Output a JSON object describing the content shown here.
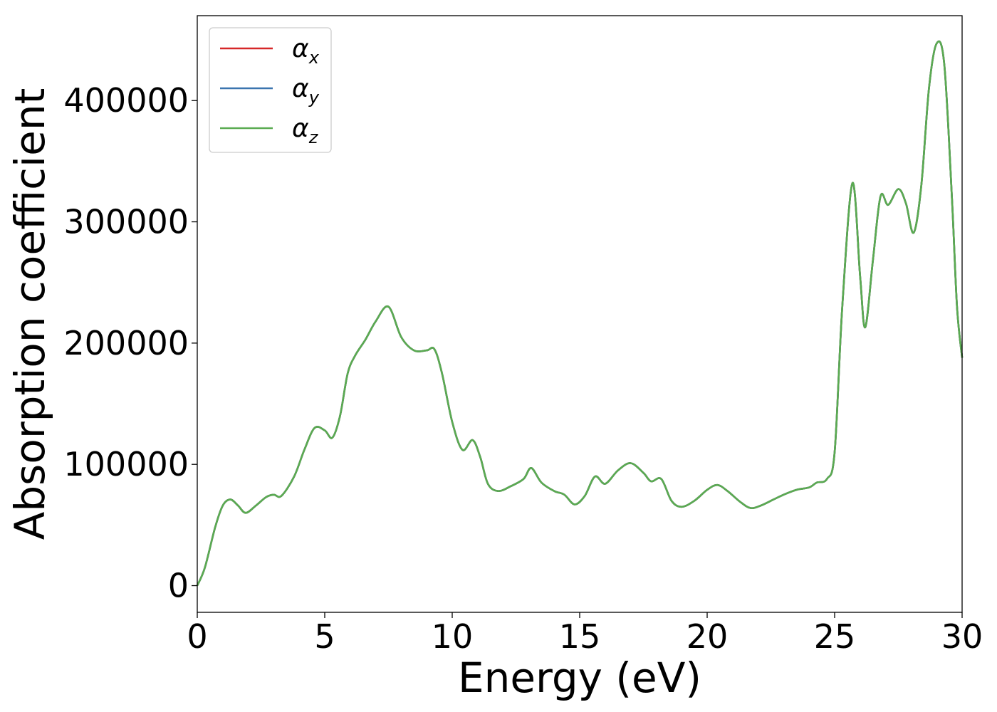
{
  "chart_data": {
    "type": "line",
    "title": "",
    "xlabel": "Energy (eV)",
    "ylabel": "Absorption coefficient",
    "xlim": [
      0,
      30
    ],
    "ylim": [
      -22000,
      470000
    ],
    "xticks": [
      0,
      5,
      10,
      15,
      20,
      25,
      30
    ],
    "yticks": [
      0,
      100000,
      200000,
      300000,
      400000
    ],
    "grid": false,
    "legend_position": "top-left",
    "series": [
      {
        "name": "α",
        "subscript": "x",
        "color": "#d62728",
        "x": [
          0.0,
          0.3,
          0.7,
          1.0,
          1.3,
          1.6,
          1.9,
          2.3,
          2.7,
          3.0,
          3.3,
          3.8,
          4.2,
          4.6,
          5.0,
          5.3,
          5.6,
          5.9,
          6.2,
          6.6,
          7.0,
          7.5,
          8.0,
          8.5,
          9.0,
          9.3,
          9.6,
          10.0,
          10.4,
          10.8,
          11.1,
          11.4,
          11.8,
          12.3,
          12.8,
          13.1,
          13.5,
          14.0,
          14.4,
          14.8,
          15.2,
          15.6,
          16.0,
          16.5,
          17.0,
          17.5,
          17.8,
          18.2,
          18.6,
          19.0,
          19.5,
          20.0,
          20.4,
          20.8,
          21.3,
          21.7,
          22.1,
          22.6,
          23.0,
          23.5,
          24.0,
          24.3,
          24.7,
          25.0,
          25.3,
          25.7,
          26.0,
          26.2,
          26.5,
          26.8,
          27.1,
          27.5,
          27.8,
          28.1,
          28.4,
          28.7,
          29.0,
          29.3,
          29.6,
          29.8,
          30.0
        ],
        "y": [
          0,
          15000,
          48000,
          66000,
          71000,
          66000,
          60000,
          66000,
          73000,
          75000,
          74000,
          90000,
          112000,
          130000,
          128000,
          122000,
          140000,
          175000,
          190000,
          203000,
          218000,
          230000,
          205000,
          194000,
          194000,
          195000,
          175000,
          135000,
          112000,
          120000,
          106000,
          84000,
          78000,
          82000,
          88000,
          97000,
          85000,
          78000,
          75000,
          67000,
          74000,
          90000,
          84000,
          95000,
          101000,
          93000,
          86000,
          88000,
          70000,
          65000,
          70000,
          79000,
          83000,
          78000,
          69000,
          64000,
          66000,
          71000,
          75000,
          79000,
          81000,
          85000,
          88000,
          110000,
          230000,
          332000,
          255000,
          213000,
          268000,
          321000,
          314000,
          327000,
          315000,
          291000,
          330000,
          410000,
          447000,
          430000,
          320000,
          230000,
          188000
        ]
      },
      {
        "name": "α",
        "subscript": "y",
        "color": "#3b75af",
        "x": [
          0.0,
          0.3,
          0.7,
          1.0,
          1.3,
          1.6,
          1.9,
          2.3,
          2.7,
          3.0,
          3.3,
          3.8,
          4.2,
          4.6,
          5.0,
          5.3,
          5.6,
          5.9,
          6.2,
          6.6,
          7.0,
          7.5,
          8.0,
          8.5,
          9.0,
          9.3,
          9.6,
          10.0,
          10.4,
          10.8,
          11.1,
          11.4,
          11.8,
          12.3,
          12.8,
          13.1,
          13.5,
          14.0,
          14.4,
          14.8,
          15.2,
          15.6,
          16.0,
          16.5,
          17.0,
          17.5,
          17.8,
          18.2,
          18.6,
          19.0,
          19.5,
          20.0,
          20.4,
          20.8,
          21.3,
          21.7,
          22.1,
          22.6,
          23.0,
          23.5,
          24.0,
          24.3,
          24.7,
          25.0,
          25.3,
          25.7,
          26.0,
          26.2,
          26.5,
          26.8,
          27.1,
          27.5,
          27.8,
          28.1,
          28.4,
          28.7,
          29.0,
          29.3,
          29.6,
          29.8,
          30.0
        ],
        "y": [
          0,
          15000,
          48000,
          66000,
          71000,
          66000,
          60000,
          66000,
          73000,
          75000,
          74000,
          90000,
          112000,
          130000,
          128000,
          122000,
          140000,
          175000,
          190000,
          203000,
          218000,
          230000,
          205000,
          194000,
          194000,
          195000,
          175000,
          135000,
          112000,
          120000,
          106000,
          84000,
          78000,
          82000,
          88000,
          97000,
          85000,
          78000,
          75000,
          67000,
          74000,
          90000,
          84000,
          95000,
          101000,
          93000,
          86000,
          88000,
          70000,
          65000,
          70000,
          79000,
          83000,
          78000,
          69000,
          64000,
          66000,
          71000,
          75000,
          79000,
          81000,
          85000,
          88000,
          110000,
          230000,
          332000,
          255000,
          213000,
          268000,
          321000,
          314000,
          327000,
          315000,
          291000,
          330000,
          410000,
          447000,
          430000,
          320000,
          230000,
          188000
        ]
      },
      {
        "name": "α",
        "subscript": "z",
        "color": "#5aab51",
        "x": [
          0.0,
          0.3,
          0.7,
          1.0,
          1.3,
          1.6,
          1.9,
          2.3,
          2.7,
          3.0,
          3.3,
          3.8,
          4.2,
          4.6,
          5.0,
          5.3,
          5.6,
          5.9,
          6.2,
          6.6,
          7.0,
          7.5,
          8.0,
          8.5,
          9.0,
          9.3,
          9.6,
          10.0,
          10.4,
          10.8,
          11.1,
          11.4,
          11.8,
          12.3,
          12.8,
          13.1,
          13.5,
          14.0,
          14.4,
          14.8,
          15.2,
          15.6,
          16.0,
          16.5,
          17.0,
          17.5,
          17.8,
          18.2,
          18.6,
          19.0,
          19.5,
          20.0,
          20.4,
          20.8,
          21.3,
          21.7,
          22.1,
          22.6,
          23.0,
          23.5,
          24.0,
          24.3,
          24.7,
          25.0,
          25.3,
          25.7,
          26.0,
          26.2,
          26.5,
          26.8,
          27.1,
          27.5,
          27.8,
          28.1,
          28.4,
          28.7,
          29.0,
          29.3,
          29.6,
          29.8,
          30.0
        ],
        "y": [
          0,
          15000,
          48000,
          66000,
          71000,
          66000,
          60000,
          66000,
          73000,
          75000,
          74000,
          90000,
          112000,
          130000,
          128000,
          122000,
          140000,
          175000,
          190000,
          203000,
          218000,
          230000,
          205000,
          194000,
          194000,
          195000,
          175000,
          135000,
          112000,
          120000,
          106000,
          84000,
          78000,
          82000,
          88000,
          97000,
          85000,
          78000,
          75000,
          67000,
          74000,
          90000,
          84000,
          95000,
          101000,
          93000,
          86000,
          88000,
          70000,
          65000,
          70000,
          79000,
          83000,
          78000,
          69000,
          64000,
          66000,
          71000,
          75000,
          79000,
          81000,
          85000,
          88000,
          110000,
          230000,
          332000,
          255000,
          213000,
          268000,
          321000,
          314000,
          327000,
          315000,
          291000,
          330000,
          410000,
          447000,
          430000,
          320000,
          230000,
          188000
        ]
      }
    ]
  }
}
